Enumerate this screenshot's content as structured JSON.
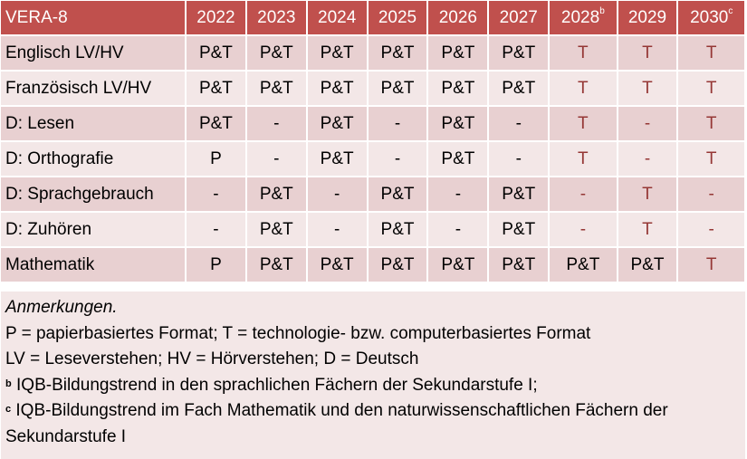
{
  "table": {
    "corner": "VERA-8",
    "years": [
      {
        "label": "2022",
        "sup": ""
      },
      {
        "label": "2023",
        "sup": ""
      },
      {
        "label": "2024",
        "sup": ""
      },
      {
        "label": "2025",
        "sup": ""
      },
      {
        "label": "2026",
        "sup": ""
      },
      {
        "label": "2027",
        "sup": ""
      },
      {
        "label": "2028",
        "sup": "b"
      },
      {
        "label": "2029",
        "sup": ""
      },
      {
        "label": "2030",
        "sup": "c"
      }
    ],
    "rows": [
      {
        "label": "Englisch LV/HV",
        "cells": [
          "P&T",
          "P&T",
          "P&T",
          "P&T",
          "P&T",
          "P&T",
          "T",
          "T",
          "T"
        ]
      },
      {
        "label": "Französisch LV/HV",
        "cells": [
          "P&T",
          "P&T",
          "P&T",
          "P&T",
          "P&T",
          "P&T",
          "T",
          "T",
          "T"
        ]
      },
      {
        "label": "D: Lesen",
        "cells": [
          "P&T",
          "-",
          "P&T",
          "-",
          "P&T",
          "-",
          "T",
          "-",
          "T"
        ]
      },
      {
        "label": "D: Orthografie",
        "cells": [
          "P",
          "-",
          "P&T",
          "-",
          "P&T",
          "-",
          "T",
          "-",
          "T"
        ]
      },
      {
        "label": "D: Sprachgebrauch",
        "cells": [
          "-",
          "P&T",
          "-",
          "P&T",
          "-",
          "P&T",
          "-",
          "T",
          "-"
        ]
      },
      {
        "label": "D: Zuhören",
        "cells": [
          "-",
          "P&T",
          "-",
          "P&T",
          "-",
          "P&T",
          "-",
          "T",
          "-"
        ]
      },
      {
        "label": "Mathematik",
        "cells": [
          "P",
          "P&T",
          "P&T",
          "P&T",
          "P&T",
          "P&T",
          "P&T",
          "P&T",
          "T"
        ]
      }
    ],
    "red_cells": [
      [
        6,
        7,
        8
      ],
      [
        6,
        7,
        8
      ],
      [
        6,
        7,
        8
      ],
      [
        6,
        7,
        8
      ],
      [
        6,
        7,
        8
      ],
      [
        6,
        7,
        8
      ],
      [
        8
      ]
    ]
  },
  "notes": {
    "heading": "Anmerkungen.",
    "line1": "P = papierbasiertes Format; T = technologie- bzw. computerbasiertes Format",
    "line2": "LV = Leseverstehen; HV = Hörverstehen; D = Deutsch",
    "b_mark": "b",
    "b_text": " IQB-Bildungstrend in den sprachlichen Fächern der Sekundarstufe I;",
    "c_mark": "c",
    "c_text": " IQB-Bildungstrend im Fach Mathematik und den naturwissenschaftlichen Fächern der Sekundarstufe I"
  },
  "colors": {
    "header": "#C0504D",
    "row_odd": "#E8D0D1",
    "row_even": "#F3E7E7",
    "planned_text": "#953735"
  }
}
